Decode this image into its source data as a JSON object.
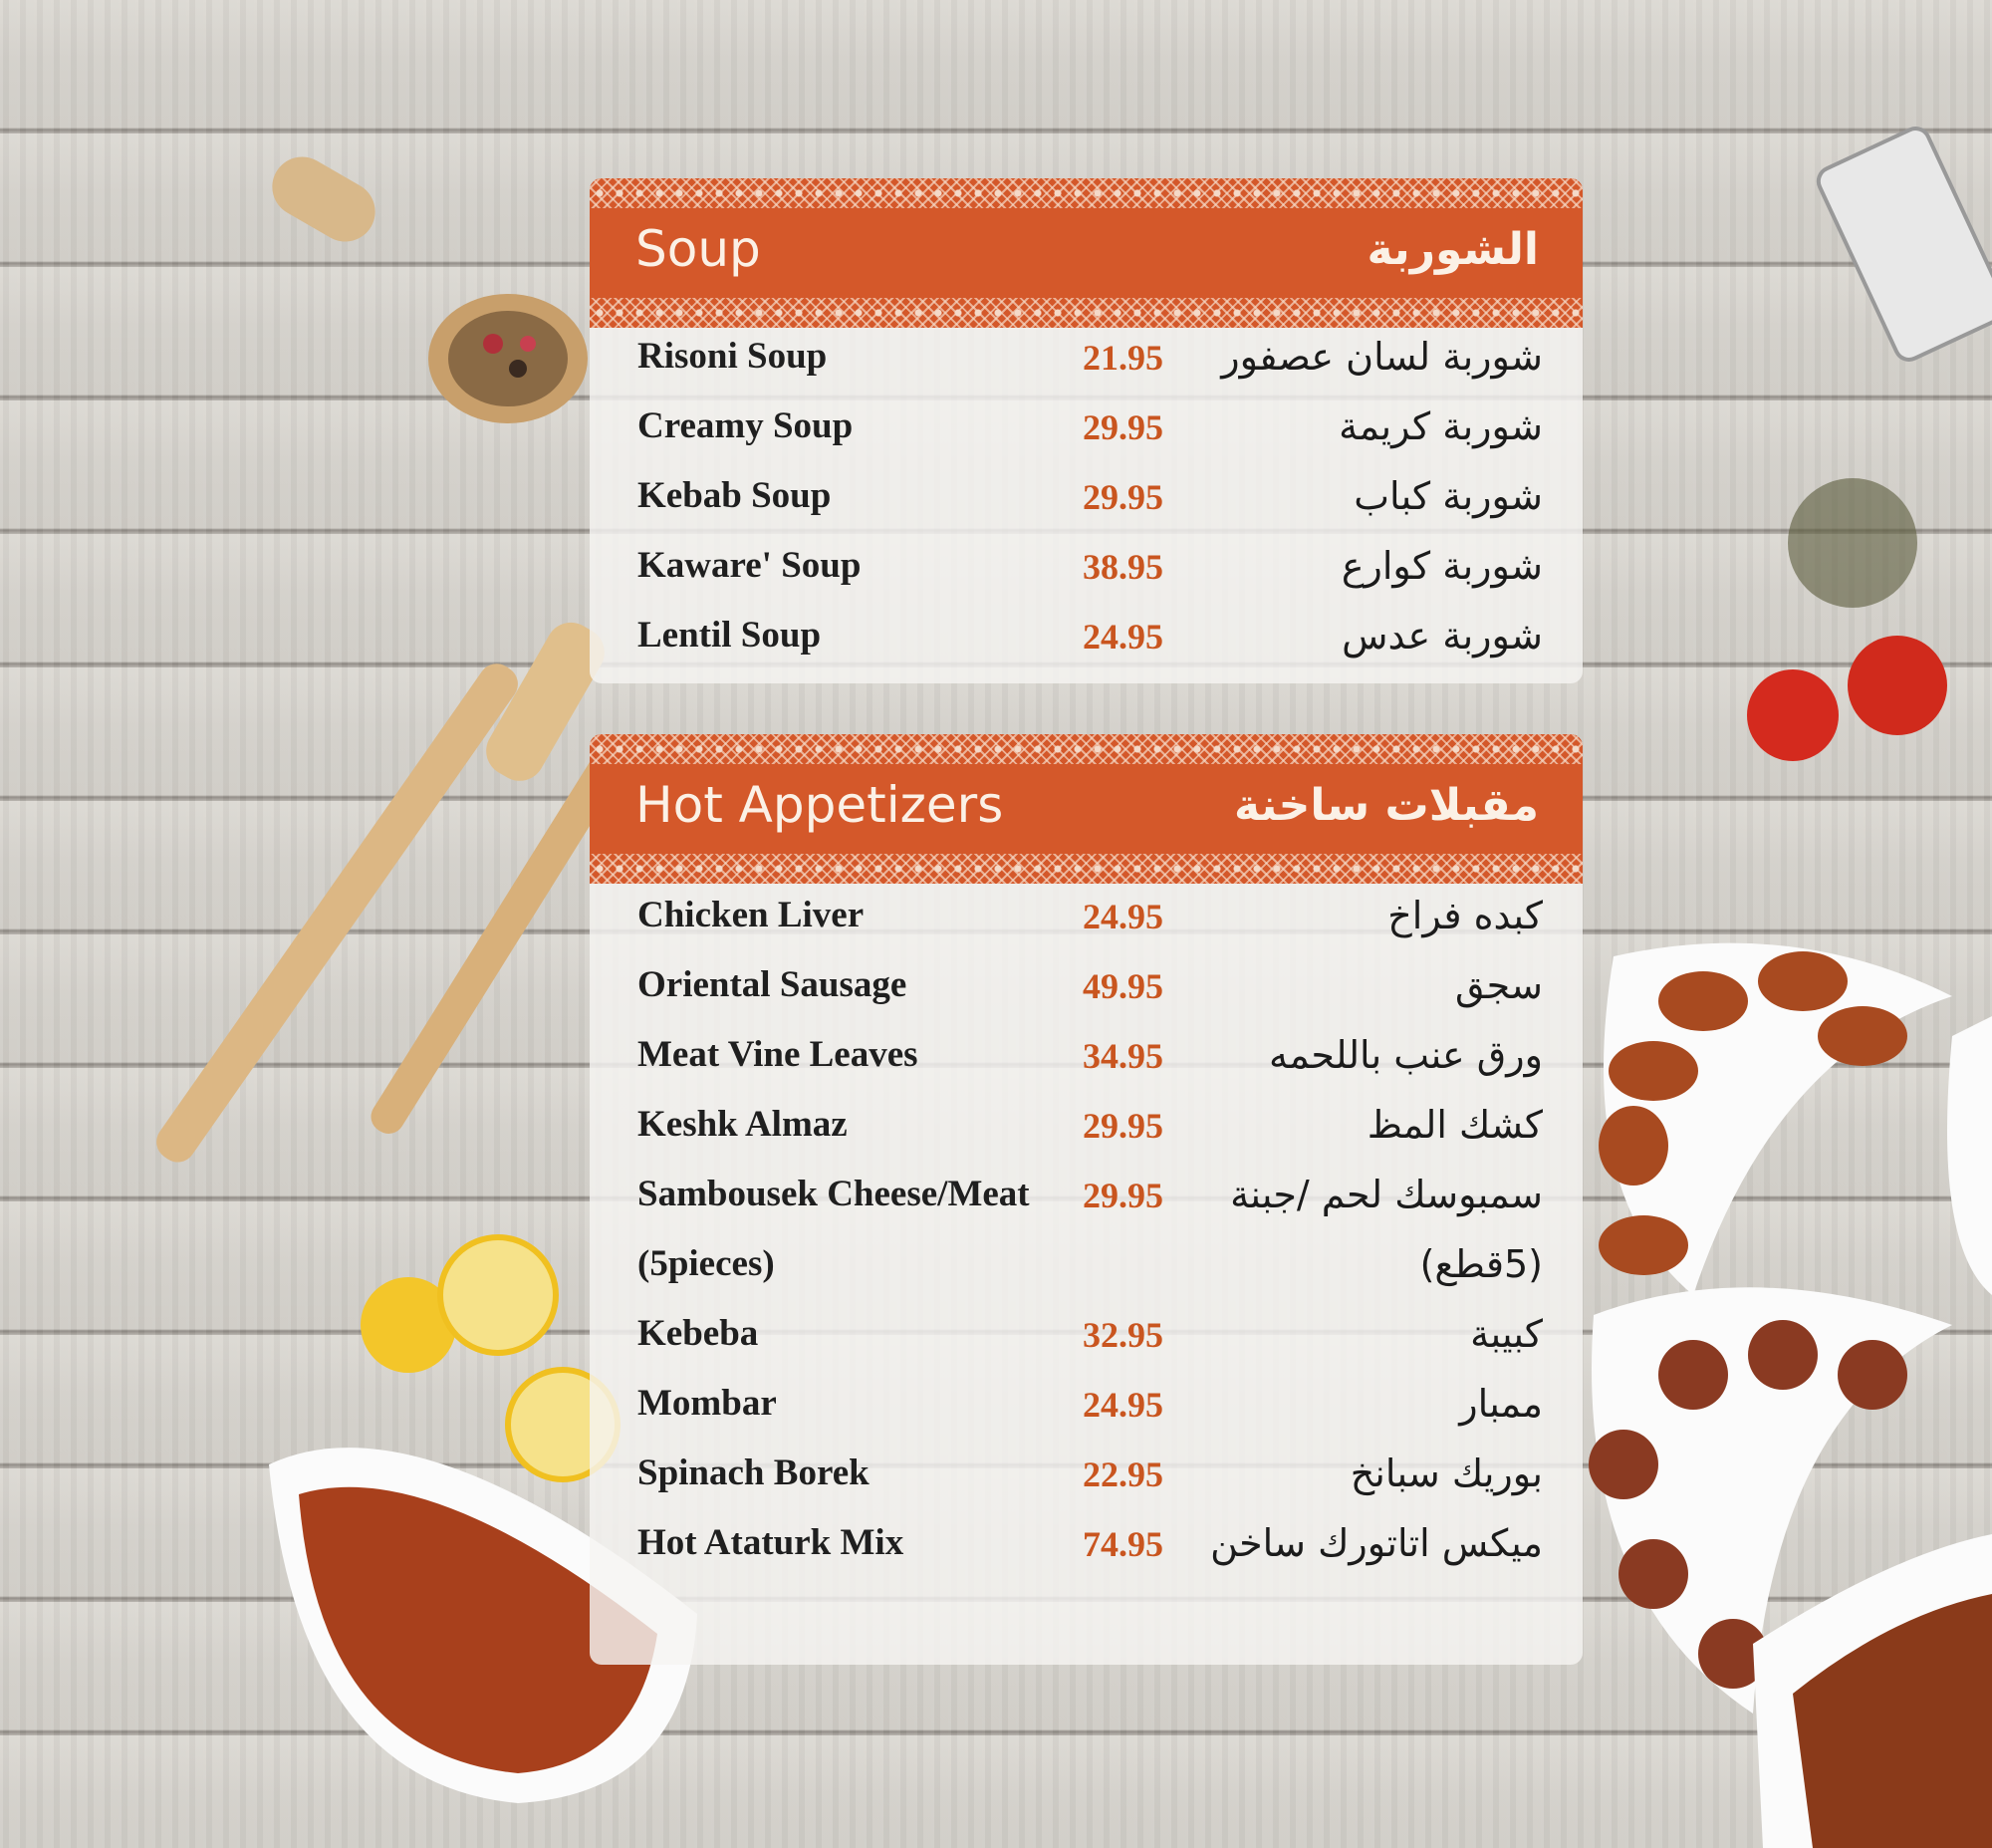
{
  "colors": {
    "accent": "#d4582a",
    "price": "#c9551f",
    "text": "#1f1f1f"
  },
  "sections": [
    {
      "title": "Soup",
      "title_ar": "الشوربة",
      "items": [
        {
          "name": "Risoni Soup",
          "price": "21.95",
          "name_ar": "شوربة لسان عصفور"
        },
        {
          "name": "Creamy Soup",
          "price": "29.95",
          "name_ar": "شوربة كريمة"
        },
        {
          "name": "Kebab Soup",
          "price": "29.95",
          "name_ar": "شوربة كباب"
        },
        {
          "name": "Kaware' Soup",
          "price": "38.95",
          "name_ar": "شوربة كوارع"
        },
        {
          "name": "Lentil Soup",
          "price": "24.95",
          "name_ar": "شوربة عدس"
        }
      ]
    },
    {
      "title": "Hot Appetizers",
      "title_ar": "مقبلات ساخنة",
      "items": [
        {
          "name": "Chicken Liver",
          "price": "24.95",
          "name_ar": "كبده فراخ"
        },
        {
          "name": "Oriental Sausage",
          "price": "49.95",
          "name_ar": "سجق"
        },
        {
          "name": "Meat Vine Leaves",
          "price": "34.95",
          "name_ar": "ورق عنب باللحمه"
        },
        {
          "name": "Keshk Almaz",
          "price": "29.95",
          "name_ar": "كشك المظ"
        },
        {
          "name": "Sambousek Cheese/Meat",
          "price": "29.95",
          "name_ar": "سمبوسك لحم /جبنة"
        },
        {
          "name": "(5pieces)",
          "price": "",
          "name_ar": "(5قطع)"
        },
        {
          "name": "Kebeba",
          "price": "32.95",
          "name_ar": "كبيبة"
        },
        {
          "name": "Mombar",
          "price": "24.95",
          "name_ar": "ممبار"
        },
        {
          "name": "Spinach Borek",
          "price": "22.95",
          "name_ar": "بوريك سبانخ"
        },
        {
          "name": "Hot Ataturk Mix",
          "price": "74.95",
          "name_ar": "ميكس اتاتورك ساخن"
        }
      ]
    }
  ]
}
